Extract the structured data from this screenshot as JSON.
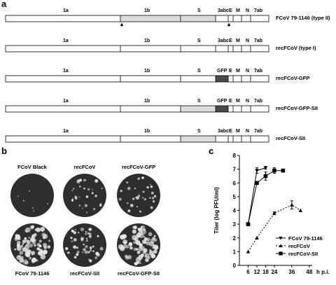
{
  "panel_a": {
    "letter": "a",
    "gene_labels": {
      "g1a": "1a",
      "g1b": "1b",
      "S": "S",
      "g3abc": "3abc",
      "E": "E",
      "M": "M",
      "N": "N",
      "g7ab": "7ab",
      "GFP": "GFP"
    },
    "constructs": [
      {
        "name": "FCoV 79-1146 (type II)",
        "has_gfp": false,
        "shaded_1b": true,
        "shaded_s": true,
        "arrows": true
      },
      {
        "name": "recFCoV (type I)",
        "has_gfp": false,
        "shaded_1b": false,
        "shaded_s": false,
        "arrows": false
      },
      {
        "name": "recFCoV-GFP",
        "has_gfp": true,
        "shaded_1b": false,
        "shaded_s": false,
        "arrows": false
      },
      {
        "name": "recFCoV-GFP-SII",
        "has_gfp": true,
        "shaded_1b": false,
        "shaded_s": true,
        "arrows": false
      },
      {
        "name": "recFCoV-SII",
        "has_gfp": false,
        "shaded_1b": false,
        "shaded_s": true,
        "arrows": false
      }
    ],
    "colors": {
      "shaded": "#dcdcdc",
      "gfp": "#4a4a4a",
      "outline": "#000000"
    }
  },
  "panel_b": {
    "letter": "b",
    "plaques": [
      {
        "label": "FCoV Black",
        "density": "sparse"
      },
      {
        "label": "recFCoV",
        "density": "medium"
      },
      {
        "label": "recFCoV-GFP",
        "density": "medium"
      },
      {
        "label": "FCoV 79-1146",
        "density": "heavy"
      },
      {
        "label": "recFCoV-SII",
        "density": "medium-heavy"
      },
      {
        "label": "recFCoV-GFP-SII",
        "density": "heavy"
      }
    ],
    "colors": {
      "dish": "#2e2e2e",
      "plaque": "#e8e8e8"
    }
  },
  "panel_c": {
    "letter": "c"
  },
  "chart_data": {
    "type": "line",
    "ylabel": "Titer (log PFU/ml)",
    "xunit": "h p.i.",
    "ylim": [
      0,
      8
    ],
    "yticks": [
      0,
      1,
      2,
      3,
      4,
      5,
      6,
      7,
      8
    ],
    "xlim": [
      0,
      50
    ],
    "xticks": [
      6,
      12,
      18,
      24,
      36,
      48
    ],
    "series": [
      {
        "name": "FCoV 79-1146",
        "marker": "triangle-down",
        "line": "solid",
        "x": [
          6,
          12,
          18
        ],
        "y": [
          3.0,
          6.9,
          7.1
        ],
        "err": [
          0.1,
          0.2,
          0.1
        ]
      },
      {
        "name": "recFCoV",
        "marker": "triangle-up",
        "line": "dashed",
        "x": [
          6,
          12,
          24,
          36,
          42
        ],
        "y": [
          1.0,
          2.0,
          3.8,
          4.4,
          4.0
        ],
        "err": [
          0,
          0,
          0.1,
          0.3,
          0
        ]
      },
      {
        "name": "recFCoV-SII",
        "marker": "square",
        "line": "solid",
        "x": [
          6,
          12,
          18,
          24,
          30
        ],
        "y": [
          3.0,
          6.0,
          6.5,
          6.9,
          6.9
        ],
        "err": [
          0.1,
          0.1,
          0.3,
          0.2,
          0
        ]
      }
    ]
  }
}
